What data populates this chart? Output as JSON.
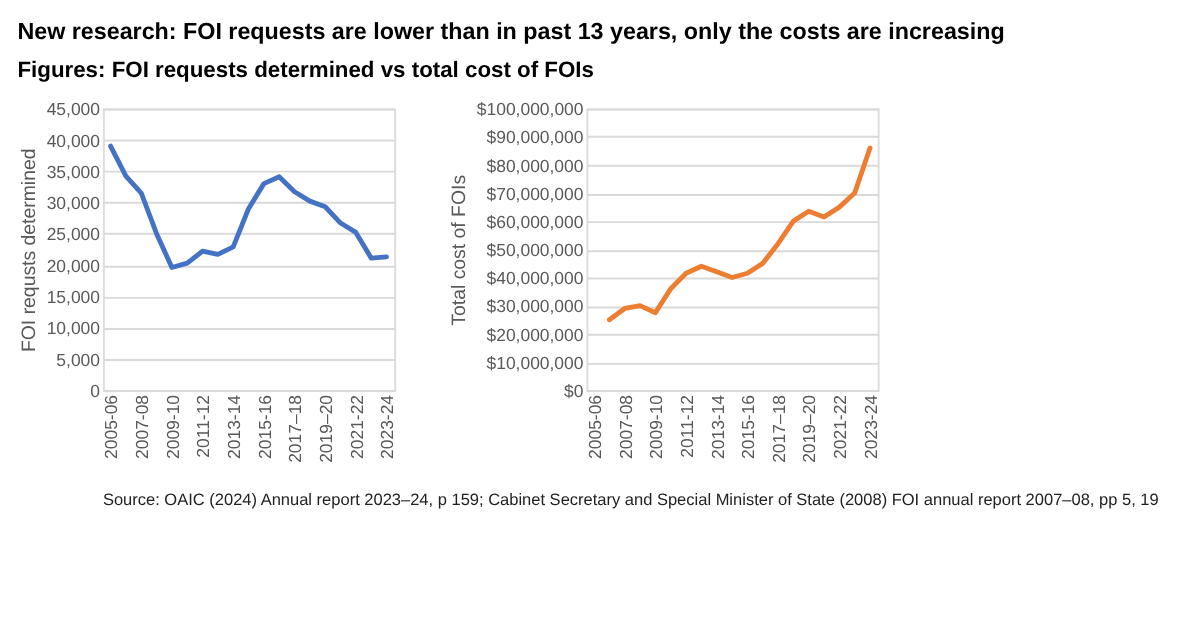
{
  "chart_data": [
    {
      "type": "line",
      "title": "New research: FOI requests are lower than in past 13 years, only the costs are increasing",
      "subtitle": "Figures: FOI requests determined vs total cost of FOIs",
      "ylabel": "FOI requsts determined",
      "categories": [
        "2005-06",
        null,
        "2007-08",
        null,
        "2009-10",
        null,
        "2011-12",
        null,
        "2013-14",
        null,
        "2015-16",
        null,
        "2017–18",
        null,
        "2019–20",
        null,
        "2021-22",
        null,
        "2023-24"
      ],
      "series": [
        {
          "color": "#4472c4",
          "values": [
            39000,
            34200,
            31500,
            25000,
            19600,
            20300,
            22200,
            21700,
            22900,
            29000,
            33000,
            34100,
            31700,
            30200,
            29300,
            26700,
            25200,
            21100,
            21300
          ]
        }
      ],
      "ylim": [
        0,
        45000
      ],
      "yticks": [
        {
          "value": 0,
          "label": "0"
        },
        {
          "value": 5000,
          "label": "5,000"
        },
        {
          "value": 10000,
          "label": "10,000"
        },
        {
          "value": 15000,
          "label": "15,000"
        },
        {
          "value": 20000,
          "label": "20,000"
        },
        {
          "value": 25000,
          "label": "25,000"
        },
        {
          "value": 30000,
          "label": "30,000"
        },
        {
          "value": 35000,
          "label": "35,000"
        },
        {
          "value": 40000,
          "label": "40,000"
        },
        {
          "value": 45000,
          "label": "45,000"
        }
      ],
      "grid": "y",
      "legend": false
    },
    {
      "type": "line",
      "ylabel": "Total cost of FOIs",
      "annotations": [
        "Source: OAIC (2024) Annual report 2023–24, p 159; Cabinet Secretary and Special Minister of State (2008) FOI annual report 2007–08, pp 5, 19"
      ],
      "categories": [
        "2005-06",
        null,
        "2007-08",
        null,
        "2009-10",
        null,
        "2011-12",
        null,
        "2013-14",
        null,
        "2015-16",
        null,
        "2017–18",
        null,
        "2019–20",
        null,
        "2021-22",
        null,
        "2023-24"
      ],
      "series": [
        {
          "color": "#ed7d31",
          "values": [
            null,
            25000000,
            29000000,
            30000000,
            27500000,
            36000000,
            41500000,
            44000000,
            42000000,
            40000000,
            41500000,
            45000000,
            52000000,
            60000000,
            63500000,
            61500000,
            65000000,
            70000000,
            86000000
          ]
        }
      ],
      "ylim": [
        0,
        100000000
      ],
      "yticks": [
        {
          "value": 0,
          "label": "$0"
        },
        {
          "value": 10000000,
          "label": "$10,000,000"
        },
        {
          "value": 20000000,
          "label": "$20,000,000"
        },
        {
          "value": 30000000,
          "label": "$30,000,000"
        },
        {
          "value": 40000000,
          "label": "$40,000,000"
        },
        {
          "value": 50000000,
          "label": "$50,000,000"
        },
        {
          "value": 60000000,
          "label": "$60,000,000"
        },
        {
          "value": 70000000,
          "label": "$70,000,000"
        },
        {
          "value": 80000000,
          "label": "$80,000,000"
        },
        {
          "value": 90000000,
          "label": "$90,000,000"
        },
        {
          "value": 100000000,
          "label": "$100,000,000"
        }
      ],
      "grid": "y",
      "legend": false
    }
  ]
}
